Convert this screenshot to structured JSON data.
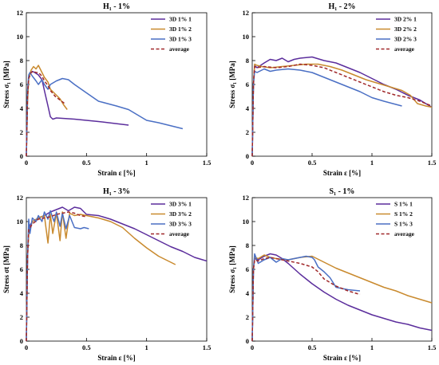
{
  "colors": {
    "s1": "#5b2d9c",
    "s2": "#c98a2e",
    "s3": "#4a6fc4",
    "avg": "#a0282a"
  },
  "chart_data": [
    {
      "type": "line",
      "title": "H₁ - 1%",
      "xlabel": "Strain ε [%]",
      "ylabel": "Stress σ₁ [MPa]",
      "xlim": [
        0,
        1.5
      ],
      "ylim": [
        0,
        12
      ],
      "xticks": [
        0,
        0.5,
        1,
        1.5
      ],
      "xtick_labels": [
        "0",
        "0.5",
        "1",
        "1.5"
      ],
      "yticks": [
        0,
        2,
        4,
        6,
        8,
        10,
        12
      ],
      "ytick_labels": [
        "0",
        "2",
        "4",
        "6",
        "8",
        "10",
        "12"
      ],
      "legend": "top-right",
      "grid": false,
      "series": [
        {
          "name": "3D 1% 1",
          "color": "#5b2d9c",
          "x": [
            0,
            0.01,
            0.02,
            0.03,
            0.05,
            0.07,
            0.1,
            0.13,
            0.15,
            0.18,
            0.2,
            0.22,
            0.25,
            0.4,
            0.6,
            0.85
          ],
          "y": [
            0,
            5,
            6.6,
            6.9,
            7.1,
            7.0,
            6.8,
            6.4,
            5.5,
            4.2,
            3.3,
            3.1,
            3.2,
            3.1,
            2.9,
            2.6
          ]
        },
        {
          "name": "3D 1% 2",
          "color": "#c98a2e",
          "x": [
            0,
            0.01,
            0.02,
            0.04,
            0.06,
            0.08,
            0.1,
            0.13,
            0.15,
            0.18,
            0.2,
            0.24,
            0.28,
            0.31,
            0.34
          ],
          "y": [
            0,
            4.5,
            6.5,
            7.2,
            7.5,
            7.3,
            7.6,
            7.0,
            6.6,
            6.2,
            5.6,
            5.2,
            4.8,
            4.3,
            3.9
          ]
        },
        {
          "name": "3D 1% 3",
          "color": "#4a6fc4",
          "x": [
            0,
            0.01,
            0.02,
            0.03,
            0.05,
            0.08,
            0.1,
            0.13,
            0.15,
            0.18,
            0.2,
            0.25,
            0.3,
            0.35,
            0.4,
            0.5,
            0.6,
            0.75,
            0.85,
            1.0,
            1.1,
            1.3
          ],
          "y": [
            0,
            5.5,
            6.8,
            7.0,
            6.7,
            6.3,
            6.0,
            6.4,
            6.0,
            5.6,
            6.0,
            6.3,
            6.5,
            6.4,
            6.0,
            5.3,
            4.6,
            4.2,
            3.9,
            3.0,
            2.8,
            2.3
          ]
        },
        {
          "name": "average",
          "color": "#a0282a",
          "dashed": true,
          "x": [
            0,
            0.01,
            0.02,
            0.04,
            0.06,
            0.08,
            0.1,
            0.13,
            0.15,
            0.18,
            0.2,
            0.24,
            0.28,
            0.32
          ],
          "y": [
            0,
            5,
            6.5,
            7.0,
            7.1,
            7.0,
            7.0,
            6.7,
            6.3,
            5.9,
            5.5,
            5.0,
            4.7,
            4.4
          ]
        }
      ]
    },
    {
      "type": "line",
      "title": "H₁ - 2%",
      "xlabel": "Strain ε [%]",
      "ylabel": "Stress σ₁ [MPa]",
      "xlim": [
        0,
        1.5
      ],
      "ylim": [
        0,
        12
      ],
      "xticks": [
        0,
        0.5,
        1,
        1.5
      ],
      "xtick_labels": [
        "0",
        "0.5",
        "1",
        "1.5"
      ],
      "yticks": [
        0,
        2,
        4,
        6,
        8,
        10,
        12
      ],
      "ytick_labels": [
        "0",
        "2",
        "4",
        "6",
        "8",
        "10",
        "12"
      ],
      "legend": "top-right",
      "grid": false,
      "series": [
        {
          "name": "3D 2% 1",
          "color": "#5b2d9c",
          "x": [
            0,
            0.01,
            0.02,
            0.04,
            0.1,
            0.15,
            0.2,
            0.25,
            0.3,
            0.35,
            0.4,
            0.5,
            0.6,
            0.7,
            0.8,
            0.9,
            1.0,
            1.1,
            1.2,
            1.3,
            1.4,
            1.5
          ],
          "y": [
            0,
            6,
            7.6,
            7.4,
            7.8,
            8.1,
            8.0,
            8.2,
            7.9,
            8.1,
            8.2,
            8.3,
            8.0,
            7.8,
            7.4,
            7.0,
            6.5,
            6.0,
            5.6,
            5.1,
            4.7,
            4.1
          ]
        },
        {
          "name": "3D 2% 2",
          "color": "#c98a2e",
          "x": [
            0,
            0.01,
            0.02,
            0.04,
            0.08,
            0.15,
            0.25,
            0.35,
            0.45,
            0.55,
            0.65,
            0.75,
            0.85,
            0.95,
            1.05,
            1.15,
            1.25,
            1.32,
            1.38,
            1.45,
            1.5
          ],
          "y": [
            0,
            6,
            7.7,
            7.6,
            7.5,
            7.4,
            7.5,
            7.6,
            7.7,
            7.7,
            7.5,
            7.2,
            6.8,
            6.4,
            6.1,
            5.8,
            5.5,
            5.1,
            4.4,
            4.2,
            4.1
          ]
        },
        {
          "name": "3D 2% 3",
          "color": "#4a6fc4",
          "x": [
            0,
            0.01,
            0.02,
            0.04,
            0.1,
            0.15,
            0.2,
            0.3,
            0.4,
            0.5,
            0.6,
            0.7,
            0.8,
            0.9,
            1.0,
            1.1,
            1.25
          ],
          "y": [
            0,
            6,
            7.1,
            7.0,
            7.3,
            7.1,
            7.2,
            7.3,
            7.2,
            7.0,
            6.6,
            6.2,
            5.8,
            5.4,
            4.9,
            4.6,
            4.2
          ]
        },
        {
          "name": "average",
          "color": "#a0282a",
          "dashed": true,
          "x": [
            0,
            0.01,
            0.02,
            0.04,
            0.1,
            0.2,
            0.3,
            0.4,
            0.5,
            0.6,
            0.7,
            0.8,
            0.9,
            1.0,
            1.1,
            1.2,
            1.3,
            1.4,
            1.5
          ],
          "y": [
            0,
            6,
            7.5,
            7.4,
            7.5,
            7.4,
            7.5,
            7.7,
            7.6,
            7.4,
            7.0,
            6.6,
            6.2,
            5.8,
            5.4,
            5.1,
            4.9,
            4.6,
            4.2
          ]
        }
      ]
    },
    {
      "type": "line",
      "title": "H₁ - 3%",
      "xlabel": "Strain ε [%]",
      "ylabel": "Stress σt [MPa]",
      "xlim": [
        0,
        1.5
      ],
      "ylim": [
        0,
        12
      ],
      "xticks": [
        0,
        0.5,
        1,
        1.5
      ],
      "xtick_labels": [
        "0",
        "0.5",
        "1",
        "1.5"
      ],
      "yticks": [
        0,
        2,
        4,
        6,
        8,
        10,
        12
      ],
      "ytick_labels": [
        "0",
        "2",
        "4",
        "6",
        "8",
        "10",
        "12"
      ],
      "legend": "top-right",
      "grid": false,
      "series": [
        {
          "name": "3D 3% 1",
          "color": "#5b2d9c",
          "x": [
            0,
            0.01,
            0.02,
            0.05,
            0.1,
            0.15,
            0.2,
            0.25,
            0.3,
            0.35,
            0.4,
            0.45,
            0.5,
            0.6,
            0.7,
            0.8,
            0.9,
            1.0,
            1.1,
            1.2,
            1.3,
            1.4,
            1.5
          ],
          "y": [
            0,
            7,
            9.5,
            10.0,
            10.3,
            10.5,
            10.8,
            11.0,
            11.2,
            10.9,
            11.2,
            11.1,
            10.6,
            10.5,
            10.2,
            9.8,
            9.4,
            8.9,
            8.4,
            7.9,
            7.5,
            7.0,
            6.7
          ]
        },
        {
          "name": "3D 3% 2",
          "color": "#c98a2e",
          "x": [
            0,
            0.01,
            0.02,
            0.05,
            0.1,
            0.15,
            0.18,
            0.2,
            0.22,
            0.25,
            0.28,
            0.3,
            0.33,
            0.36,
            0.4,
            0.45,
            0.5,
            0.55,
            0.6,
            0.7,
            0.8,
            0.9,
            1.0,
            1.1,
            1.2,
            1.24
          ],
          "y": [
            0,
            7,
            9.0,
            10.0,
            10.3,
            10.5,
            8.2,
            10.6,
            9.0,
            10.7,
            8.4,
            10.8,
            8.6,
            10.7,
            10.5,
            10.6,
            10.5,
            10.4,
            10.3,
            10.0,
            9.5,
            8.6,
            7.8,
            7.1,
            6.6,
            6.4
          ]
        },
        {
          "name": "3D 3% 3",
          "color": "#4a6fc4",
          "x": [
            0,
            0.01,
            0.02,
            0.03,
            0.05,
            0.08,
            0.1,
            0.13,
            0.15,
            0.18,
            0.2,
            0.23,
            0.25,
            0.28,
            0.3,
            0.33,
            0.36,
            0.4,
            0.45,
            0.48,
            0.52
          ],
          "y": [
            0,
            7,
            10.2,
            9.0,
            10.3,
            10.0,
            10.5,
            10.0,
            10.8,
            10.2,
            10.9,
            10.0,
            10.8,
            9.6,
            10.7,
            9.4,
            10.5,
            9.5,
            9.4,
            9.5,
            9.4
          ]
        },
        {
          "name": "average",
          "color": "#a0282a",
          "dashed": true,
          "x": [
            0,
            0.01,
            0.02,
            0.05,
            0.1,
            0.15,
            0.2,
            0.25,
            0.3,
            0.35,
            0.4,
            0.45,
            0.5
          ],
          "y": [
            0,
            7,
            9.3,
            9.8,
            10.2,
            10.3,
            10.4,
            10.6,
            10.7,
            10.8,
            10.7,
            10.5,
            10.4
          ]
        }
      ]
    },
    {
      "type": "line",
      "title": "S₁ - 1%",
      "xlabel": "Strain ε [%]",
      "ylabel": "Stress σ₁ [MPa]",
      "xlim": [
        0,
        1.5
      ],
      "ylim": [
        0,
        12
      ],
      "xticks": [
        0,
        0.5,
        1,
        1.5
      ],
      "xtick_labels": [
        "0",
        "0.5",
        "1",
        "1.5"
      ],
      "yticks": [
        0,
        2,
        4,
        6,
        8,
        10,
        12
      ],
      "ytick_labels": [
        "0",
        "2",
        "4",
        "6",
        "8",
        "10",
        "12"
      ],
      "legend": "top-right",
      "grid": false,
      "series": [
        {
          "name": "S 1% 1",
          "color": "#5b2d9c",
          "x": [
            0,
            0.01,
            0.02,
            0.05,
            0.1,
            0.15,
            0.2,
            0.25,
            0.3,
            0.4,
            0.5,
            0.6,
            0.7,
            0.8,
            0.9,
            1.0,
            1.1,
            1.2,
            1.3,
            1.4,
            1.5
          ],
          "y": [
            0,
            6,
            6.9,
            6.8,
            7.1,
            7.3,
            7.2,
            6.9,
            6.5,
            5.6,
            4.8,
            4.1,
            3.5,
            3.0,
            2.6,
            2.2,
            1.9,
            1.6,
            1.4,
            1.1,
            0.9
          ]
        },
        {
          "name": "S 1% 2",
          "color": "#c98a2e",
          "x": [
            0,
            0.01,
            0.02,
            0.05,
            0.1,
            0.15,
            0.2,
            0.3,
            0.4,
            0.5,
            0.6,
            0.7,
            0.8,
            0.9,
            1.0,
            1.1,
            1.2,
            1.3,
            1.4,
            1.5
          ],
          "y": [
            0,
            6,
            7.0,
            6.9,
            7.2,
            7.0,
            6.9,
            6.8,
            7.0,
            7.1,
            6.6,
            6.1,
            5.7,
            5.3,
            4.9,
            4.5,
            4.2,
            3.8,
            3.5,
            3.2
          ]
        },
        {
          "name": "S 1% 3",
          "color": "#4a6fc4",
          "x": [
            0,
            0.01,
            0.02,
            0.05,
            0.1,
            0.15,
            0.2,
            0.25,
            0.3,
            0.35,
            0.4,
            0.45,
            0.5,
            0.52,
            0.55,
            0.6,
            0.65,
            0.7,
            0.8,
            0.9
          ],
          "y": [
            0,
            6,
            7.3,
            6.5,
            6.8,
            7.0,
            6.6,
            6.9,
            6.8,
            6.9,
            7.0,
            7.1,
            7.0,
            6.8,
            6.2,
            5.8,
            5.3,
            4.5,
            4.3,
            4.2
          ]
        },
        {
          "name": "average",
          "color": "#a0282a",
          "dashed": true,
          "x": [
            0,
            0.01,
            0.02,
            0.05,
            0.1,
            0.15,
            0.2,
            0.3,
            0.4,
            0.5,
            0.55,
            0.6,
            0.7,
            0.8,
            0.9
          ],
          "y": [
            0,
            6,
            6.8,
            6.7,
            6.9,
            7.0,
            6.9,
            6.7,
            6.5,
            6.2,
            5.8,
            5.2,
            4.6,
            4.2,
            3.9
          ]
        }
      ]
    }
  ]
}
